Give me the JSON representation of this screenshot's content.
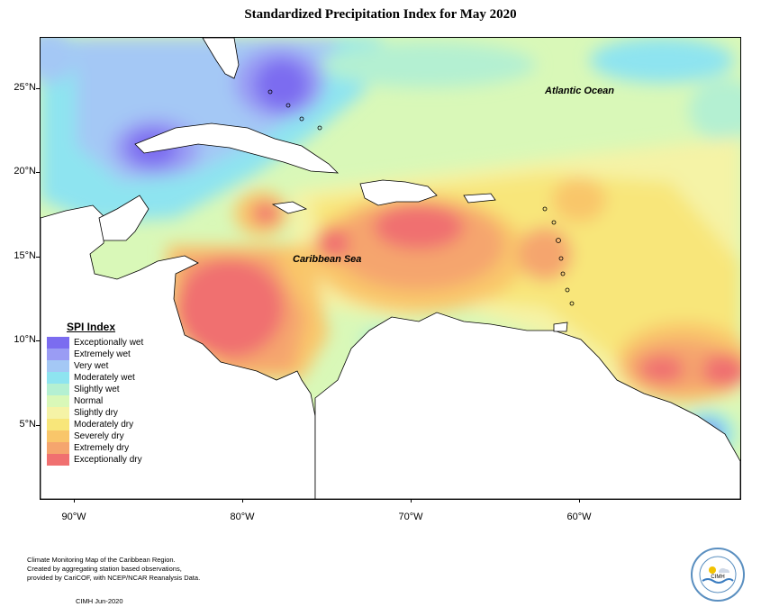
{
  "title": "Standardized Precipitation Index for May 2020",
  "map": {
    "labels": {
      "atlantic": "Atlantic Ocean",
      "caribbean": "Caribbean Sea"
    },
    "lat_ticks": [
      "25°N",
      "20°N",
      "15°N",
      "10°N",
      "5°N"
    ],
    "lon_ticks": [
      "90°W",
      "80°W",
      "70°W",
      "60°W"
    ],
    "land_color": "#ffffff"
  },
  "legend": {
    "title": "SPI Index",
    "items": [
      {
        "label": "Exceptionally wet",
        "color": "#7b6cf0"
      },
      {
        "label": "Extremely wet",
        "color": "#9a9cf4"
      },
      {
        "label": "Very wet",
        "color": "#a4c8f5"
      },
      {
        "label": "Moderately wet",
        "color": "#8ee4f0"
      },
      {
        "label": "Slightly wet",
        "color": "#b4f0d2"
      },
      {
        "label": "Normal",
        "color": "#d9f8b8"
      },
      {
        "label": "Slightly dry",
        "color": "#f5f3a6"
      },
      {
        "label": "Moderately dry",
        "color": "#f8e67a"
      },
      {
        "label": "Severely dry",
        "color": "#f9c66a"
      },
      {
        "label": "Extremely dry",
        "color": "#f5a56e"
      },
      {
        "label": "Exceptionally dry",
        "color": "#f07070"
      }
    ]
  },
  "footer": {
    "line1": "Climate Monitoring Map of the Caribbean Region.",
    "line2": "Created by aggregating station based observations,",
    "line3": "provided by CariCOF, with NCEP/NCAR Reanalysis Data.",
    "credit": "CIMH Jun-2020",
    "logo_text": "CIMH"
  }
}
